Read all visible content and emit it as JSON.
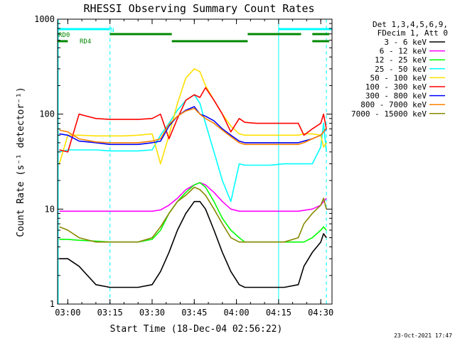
{
  "chart_data": {
    "type": "line",
    "title": "RHESSI Observing Summary Count Rates",
    "xlabel": "Start Time (18-Dec-04 02:56:22)",
    "ylabel": "Count Rate (s⁻¹ detector⁻¹)",
    "y_scale": "log",
    "ylim": [
      1,
      1000
    ],
    "xlim": [
      "02:56:22",
      "04:34:00"
    ],
    "x_tick_labels": [
      "03:00",
      "03:15",
      "03:30",
      "03:45",
      "04:00",
      "04:15",
      "04:30"
    ],
    "y_tick_labels": [
      "1",
      "10",
      "100",
      "1000"
    ],
    "x": [
      "02:57",
      "03:00",
      "03:04",
      "03:10",
      "03:15",
      "03:20",
      "03:25",
      "03:30",
      "03:33",
      "03:36",
      "03:39",
      "03:42",
      "03:45",
      "03:47",
      "03:49",
      "03:52",
      "03:55",
      "03:58",
      "04:01",
      "04:03",
      "04:07",
      "04:12",
      "04:17",
      "04:22",
      "04:24",
      "04:27",
      "04:30",
      "04:31",
      "04:32"
    ],
    "legend_header": [
      "Det 1,3,4,5,6,9,",
      "FDecim 1, Att 0"
    ],
    "series": [
      {
        "name": "3 - 6 keV",
        "color": "#000000",
        "values": [
          3.0,
          3.0,
          2.5,
          1.6,
          1.5,
          1.5,
          1.5,
          1.6,
          2.2,
          3.5,
          6,
          9,
          12,
          12,
          10,
          6,
          3.5,
          2.2,
          1.6,
          1.5,
          1.5,
          1.5,
          1.5,
          1.6,
          2.5,
          3.5,
          4.5,
          5.5,
          5.0
        ]
      },
      {
        "name": "6 - 12 keV",
        "color": "#ff00ff",
        "values": [
          9.5,
          9.5,
          9.5,
          9.5,
          9.5,
          9.5,
          9.5,
          9.5,
          9.8,
          11,
          13,
          16,
          18,
          19,
          18,
          15,
          12,
          10,
          9.5,
          9.5,
          9.5,
          9.5,
          9.5,
          9.5,
          9.7,
          10,
          11,
          12,
          13
        ]
      },
      {
        "name": "12 - 25 keV",
        "color": "#00ff00",
        "values": [
          4.8,
          4.8,
          4.7,
          4.6,
          4.5,
          4.5,
          4.5,
          4.8,
          6,
          9,
          12,
          15,
          18,
          19,
          17,
          12,
          8,
          6,
          5,
          4.5,
          4.5,
          4.5,
          4.5,
          4.5,
          4.5,
          5,
          6,
          6.5,
          6
        ]
      },
      {
        "name": "25 - 50 keV",
        "color": "#00ffff",
        "values": [
          40,
          42,
          42,
          42,
          41,
          41,
          41,
          42,
          60,
          80,
          110,
          140,
          160,
          130,
          80,
          40,
          20,
          12,
          30,
          29,
          29,
          29,
          30,
          30,
          30,
          30,
          45,
          80,
          40
        ]
      },
      {
        "name": "50 - 100 keV",
        "color": "#ffe000",
        "values": [
          30,
          60,
          60,
          59,
          59,
          59,
          60,
          62,
          30,
          60,
          130,
          240,
          300,
          280,
          200,
          140,
          100,
          75,
          62,
          60,
          60,
          60,
          60,
          60,
          62,
          62,
          60,
          45,
          50
        ]
      },
      {
        "name": "100 - 300 keV",
        "color": "#ff0000",
        "values": [
          42,
          40,
          100,
          90,
          88,
          88,
          88,
          90,
          100,
          55,
          90,
          140,
          160,
          150,
          190,
          140,
          100,
          65,
          90,
          82,
          80,
          80,
          80,
          80,
          60,
          70,
          80,
          100,
          70
        ]
      },
      {
        "name": "300 - 800 keV",
        "color": "#0000ff",
        "values": [
          62,
          60,
          52,
          50,
          48,
          48,
          48,
          50,
          52,
          75,
          95,
          110,
          120,
          100,
          95,
          85,
          70,
          60,
          52,
          50,
          50,
          50,
          50,
          50,
          52,
          55,
          60,
          65,
          70
        ]
      },
      {
        "name": "800 - 7000 keV",
        "color": "#ff8000",
        "values": [
          68,
          65,
          55,
          51,
          50,
          50,
          50,
          52,
          55,
          78,
          95,
          108,
          115,
          100,
          90,
          80,
          68,
          58,
          50,
          48,
          48,
          48,
          48,
          48,
          50,
          55,
          60,
          65,
          72
        ]
      },
      {
        "name": "7000 - 15000 keV",
        "color": "#888800",
        "values": [
          6.5,
          6.0,
          5.0,
          4.5,
          4.5,
          4.5,
          4.5,
          5,
          6.5,
          9,
          12,
          14,
          17,
          16,
          14,
          10,
          7,
          5,
          4.5,
          4.5,
          4.5,
          4.5,
          4.5,
          5,
          7,
          9,
          11,
          13,
          10
        ]
      }
    ],
    "flags": [
      {
        "name": "N",
        "color": "#00ffff",
        "segments": [
          [
            "02:56",
            "03:15"
          ],
          [
            "04:15",
            "04:34"
          ]
        ]
      },
      {
        "name": "RD0",
        "color": "#008800",
        "segments": [
          [
            "03:15",
            "03:37"
          ],
          [
            "04:04",
            "04:23"
          ],
          [
            "04:27",
            "04:33"
          ]
        ]
      },
      {
        "name": "RD4",
        "color": "#008800",
        "segments": [
          [
            "02:56",
            "03:00"
          ],
          [
            "03:37",
            "04:04"
          ],
          [
            "04:27",
            "04:33"
          ]
        ]
      }
    ],
    "vlines": [
      {
        "t": "02:56",
        "color": "#00ffff",
        "style": "solid"
      },
      {
        "t": "03:15",
        "color": "#00ffff",
        "style": "dashed"
      },
      {
        "t": "04:15",
        "color": "#00ffff",
        "style": "solid"
      },
      {
        "t": "04:32",
        "color": "#00ffff",
        "style": "dashed"
      }
    ]
  },
  "footer": {
    "timestamp": "23-Oct-2021 17:47"
  }
}
